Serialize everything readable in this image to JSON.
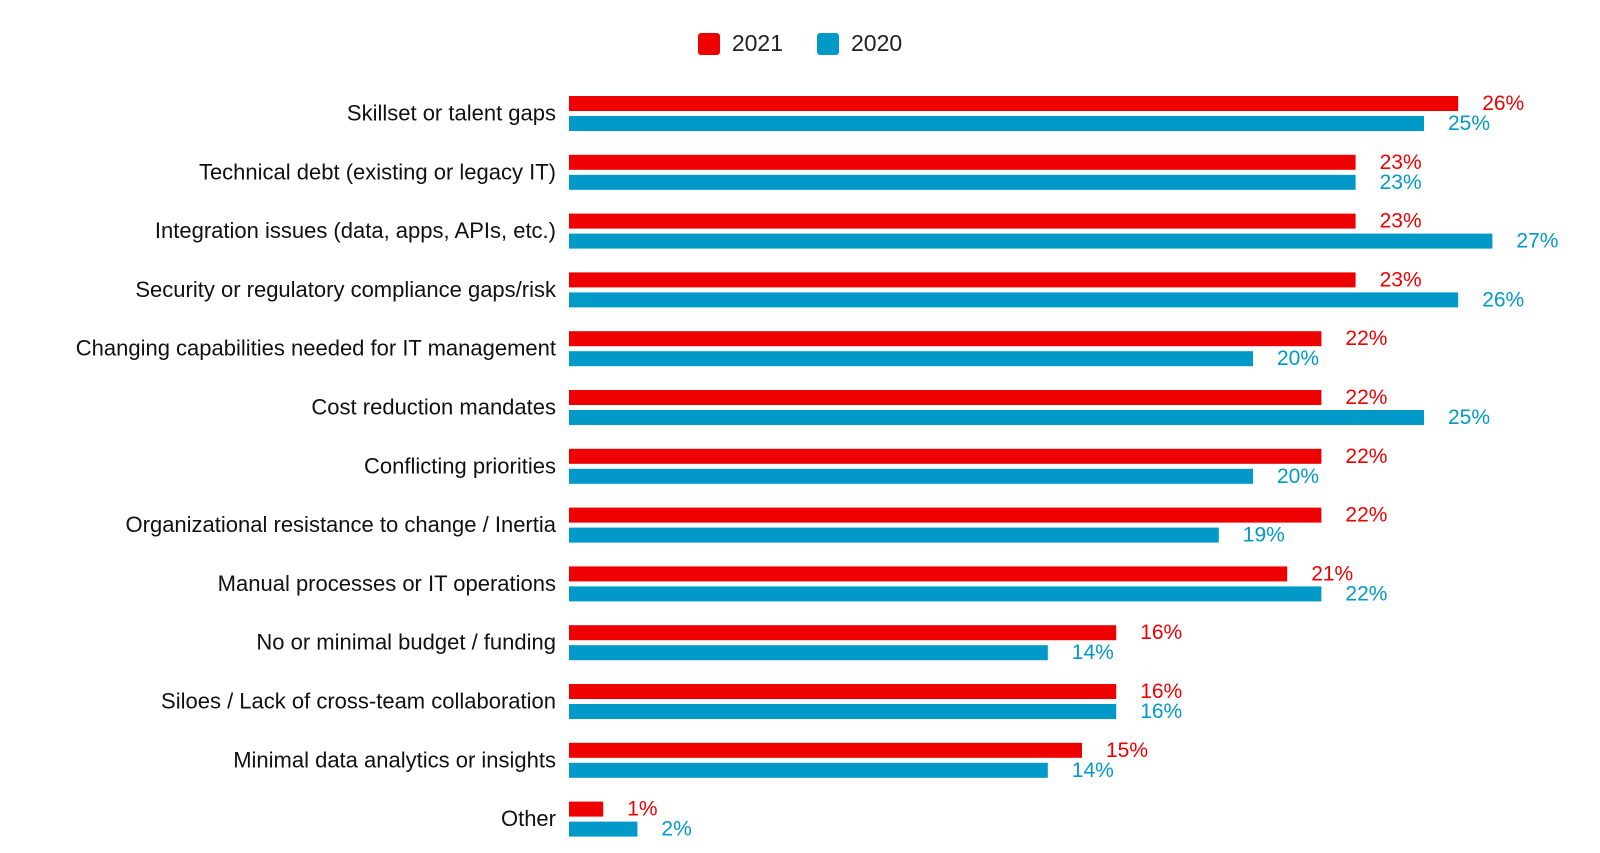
{
  "chart_data": {
    "type": "bar",
    "orientation": "horizontal",
    "legend_position": "top-center",
    "grid": false,
    "value_suffix": "%",
    "xlim": [
      0,
      27
    ],
    "categories": [
      "Skillset or talent gaps",
      "Technical debt (existing or legacy IT)",
      "Integration issues (data, apps, APIs, etc.)",
      "Security or regulatory compliance gaps/risk",
      "Changing capabilities needed for IT management",
      "Cost reduction mandates",
      "Conflicting priorities",
      "Organizational resistance to change / Inertia",
      "Manual processes or IT operations",
      "No or minimal budget / funding",
      "Siloes / Lack of cross-team collaboration",
      "Minimal data analytics or insights",
      "Other"
    ],
    "series": [
      {
        "name": "2021",
        "color": "#ee0000",
        "values": [
          26,
          23,
          23,
          23,
          22,
          22,
          22,
          22,
          21,
          16,
          16,
          15,
          1
        ],
        "labels": [
          "26%",
          "23%",
          "23%",
          "23%",
          "22%",
          "22%",
          "22%",
          "22%",
          "21%",
          "16%",
          "16%",
          "15%",
          "1%"
        ]
      },
      {
        "name": "2020",
        "color": "#0099c8",
        "values": [
          25,
          23,
          27,
          26,
          20,
          25,
          20,
          19,
          22,
          14,
          16,
          14,
          2
        ],
        "labels": [
          "25%",
          "23%",
          "27%",
          "26%",
          "20%",
          "25%",
          "20%",
          "19%",
          "22%",
          "14%",
          "16%",
          "14%",
          "2%"
        ]
      }
    ]
  }
}
